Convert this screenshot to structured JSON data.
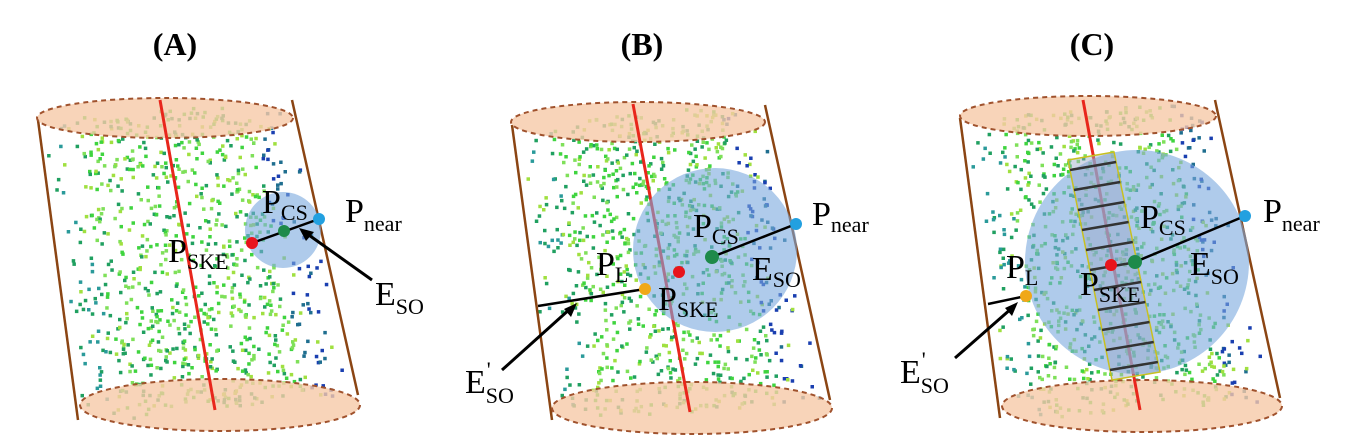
{
  "figure": {
    "panels": [
      {
        "id": "A",
        "title": "(A)",
        "labels": {
          "p_cs": {
            "main": "P",
            "sub": "CS"
          },
          "p_near": {
            "main": "P",
            "sub": "near"
          },
          "p_ske": {
            "main": "P",
            "sub": "SKE"
          },
          "e_so": {
            "main": "E",
            "sub": "SO"
          }
        }
      },
      {
        "id": "B",
        "title": "(B)",
        "labels": {
          "p_cs": {
            "main": "P",
            "sub": "CS"
          },
          "p_near": {
            "main": "P",
            "sub": "near"
          },
          "p_l": {
            "main": "P",
            "sub": "L"
          },
          "p_ske": {
            "main": "P",
            "sub": "SKE"
          },
          "e_so": {
            "main": "E",
            "sub": "SO"
          },
          "e_so_prime": {
            "main": "E",
            "sup": "'",
            "sub": "SO"
          }
        }
      },
      {
        "id": "C",
        "title": "(C)",
        "labels": {
          "p_cs": {
            "main": "P",
            "sub": "CS"
          },
          "p_near": {
            "main": "P",
            "sub": "near"
          },
          "p_l": {
            "main": "P",
            "sub": "L"
          },
          "p_ske": {
            "main": "P",
            "sub": "SKE"
          },
          "e_so": {
            "main": "E",
            "sub": "SO"
          },
          "e_so_prime": {
            "main": "E",
            "sup": "'",
            "sub": "SO"
          }
        }
      }
    ],
    "colors": {
      "cylinder_wall": "#8b4513",
      "ellipse_fill": "#f6c9a8",
      "ellipse_stroke": "#a0522d",
      "skeleton_line": "#e8261c",
      "sphere_fill": "#7aa9dd",
      "point_ske": "#e8141c",
      "point_cs": "#1e8a4a",
      "point_near": "#22a0e0",
      "point_l": "#f0a818",
      "point_cloud": [
        "#3fd43f",
        "#7fe05a",
        "#20a060",
        "#1f6e8f",
        "#1a3fb0",
        "#2a9a9a",
        "#a0e040"
      ]
    }
  }
}
